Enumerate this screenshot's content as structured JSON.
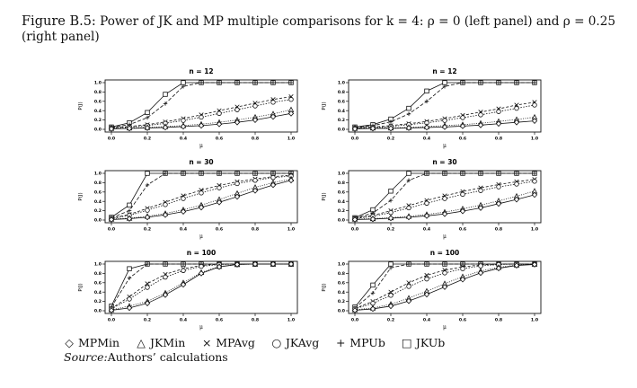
{
  "caption": {
    "label": "Figure B.5:",
    "text": "Power of JK and MP multiple comparisons for k = 4: ρ = 0 (left panel) and ρ = 0.25 (right panel)"
  },
  "legend": [
    {
      "symbol": "◇",
      "name": "MPMin",
      "marker": "diamond"
    },
    {
      "symbol": "△",
      "name": "JKMin",
      "marker": "triangle"
    },
    {
      "symbol": "×",
      "name": "MPAvg",
      "marker": "x"
    },
    {
      "symbol": "○",
      "name": "JKAvg",
      "marker": "circle"
    },
    {
      "symbol": "+",
      "name": "MPUb",
      "marker": "plus"
    },
    {
      "symbol": "□",
      "name": "JKUb",
      "marker": "square"
    }
  ],
  "source": {
    "label": "Source:",
    "text": "Authors’ calculations"
  },
  "chart_data": [
    {
      "type": "line",
      "title": "n = 12",
      "xlabel": "μ",
      "ylabel": "P(J)",
      "x": [
        0,
        0.1,
        0.2,
        0.3,
        0.4,
        0.5,
        0.6,
        0.7,
        0.8,
        0.9,
        1.0
      ],
      "xlim": [
        0,
        1
      ],
      "ylim": [
        0,
        1
      ],
      "xticks": [
        "0.0",
        "0.2",
        "0.4",
        "0.6",
        "0.8",
        "1.0"
      ],
      "yticks": [
        "0.0",
        "0.2",
        "0.4",
        "0.6",
        "0.8",
        "1.0"
      ],
      "series": [
        {
          "name": "JKUb",
          "values": [
            0.05,
            0.14,
            0.36,
            0.75,
            1.0,
            1.0,
            1.0,
            1.0,
            1.0,
            1.0,
            1.0
          ]
        },
        {
          "name": "MPUb",
          "values": [
            0.04,
            0.1,
            0.25,
            0.55,
            0.92,
            1.0,
            1.0,
            1.0,
            1.0,
            1.0,
            1.0
          ]
        },
        {
          "name": "MPAvg",
          "values": [
            0.03,
            0.06,
            0.1,
            0.16,
            0.23,
            0.31,
            0.4,
            0.48,
            0.56,
            0.64,
            0.7
          ]
        },
        {
          "name": "JKAvg",
          "values": [
            0.03,
            0.05,
            0.08,
            0.13,
            0.19,
            0.26,
            0.34,
            0.42,
            0.5,
            0.58,
            0.64
          ]
        },
        {
          "name": "JKMin",
          "values": [
            0.02,
            0.03,
            0.04,
            0.06,
            0.08,
            0.11,
            0.15,
            0.2,
            0.26,
            0.33,
            0.42
          ]
        },
        {
          "name": "MPMin",
          "values": [
            0.01,
            0.02,
            0.03,
            0.04,
            0.06,
            0.08,
            0.11,
            0.15,
            0.2,
            0.27,
            0.34
          ]
        }
      ]
    },
    {
      "type": "line",
      "title": "n = 12",
      "xlabel": "μ",
      "ylabel": "P(J)",
      "x": [
        0,
        0.1,
        0.2,
        0.3,
        0.4,
        0.5,
        0.6,
        0.7,
        0.8,
        0.9,
        1.0
      ],
      "xlim": [
        0,
        1
      ],
      "ylim": [
        0,
        1
      ],
      "xticks": [
        "0.0",
        "0.2",
        "0.4",
        "0.6",
        "0.8",
        "1.0"
      ],
      "yticks": [
        "0.0",
        "0.2",
        "0.4",
        "0.6",
        "0.8",
        "1.0"
      ],
      "series": [
        {
          "name": "JKUb",
          "values": [
            0.05,
            0.1,
            0.22,
            0.45,
            0.82,
            1.0,
            1.0,
            1.0,
            1.0,
            1.0,
            1.0
          ]
        },
        {
          "name": "MPUb",
          "values": [
            0.04,
            0.08,
            0.16,
            0.33,
            0.6,
            0.92,
            1.0,
            1.0,
            1.0,
            1.0,
            1.0
          ]
        },
        {
          "name": "MPAvg",
          "values": [
            0.03,
            0.05,
            0.08,
            0.12,
            0.17,
            0.23,
            0.3,
            0.37,
            0.44,
            0.52,
            0.58
          ]
        },
        {
          "name": "JKAvg",
          "values": [
            0.03,
            0.04,
            0.06,
            0.1,
            0.14,
            0.19,
            0.25,
            0.31,
            0.38,
            0.45,
            0.52
          ]
        },
        {
          "name": "JKMin",
          "values": [
            0.02,
            0.03,
            0.03,
            0.04,
            0.06,
            0.08,
            0.1,
            0.13,
            0.17,
            0.21,
            0.26
          ]
        },
        {
          "name": "MPMin",
          "values": [
            0.01,
            0.02,
            0.02,
            0.03,
            0.04,
            0.05,
            0.07,
            0.09,
            0.12,
            0.15,
            0.18
          ]
        }
      ]
    },
    {
      "type": "line",
      "title": "n = 30",
      "xlabel": "μ",
      "ylabel": "P(J)",
      "x": [
        0,
        0.1,
        0.2,
        0.3,
        0.4,
        0.5,
        0.6,
        0.7,
        0.8,
        0.9,
        1.0
      ],
      "xlim": [
        0,
        1
      ],
      "ylim": [
        0,
        1
      ],
      "xticks": [
        "0.0",
        "0.2",
        "0.4",
        "0.6",
        "0.8",
        "1.0"
      ],
      "yticks": [
        "0.0",
        "0.2",
        "0.4",
        "0.6",
        "0.8",
        "1.0"
      ],
      "series": [
        {
          "name": "JKUb",
          "values": [
            0.06,
            0.32,
            1.0,
            1.0,
            1.0,
            1.0,
            1.0,
            1.0,
            1.0,
            1.0,
            1.0
          ]
        },
        {
          "name": "MPUb",
          "values": [
            0.05,
            0.2,
            0.75,
            1.0,
            1.0,
            1.0,
            1.0,
            1.0,
            1.0,
            1.0,
            1.0
          ]
        },
        {
          "name": "MPAvg",
          "values": [
            0.04,
            0.12,
            0.25,
            0.38,
            0.52,
            0.64,
            0.74,
            0.82,
            0.88,
            0.93,
            0.96
          ]
        },
        {
          "name": "JKAvg",
          "values": [
            0.03,
            0.1,
            0.21,
            0.33,
            0.46,
            0.58,
            0.69,
            0.78,
            0.85,
            0.91,
            0.94
          ]
        },
        {
          "name": "JKMin",
          "values": [
            0.02,
            0.04,
            0.08,
            0.14,
            0.22,
            0.32,
            0.44,
            0.57,
            0.7,
            0.8,
            0.88
          ]
        },
        {
          "name": "MPMin",
          "values": [
            0.01,
            0.03,
            0.06,
            0.11,
            0.18,
            0.27,
            0.38,
            0.5,
            0.63,
            0.75,
            0.85
          ]
        }
      ]
    },
    {
      "type": "line",
      "title": "n = 30",
      "xlabel": "μ",
      "ylabel": "P(J)",
      "x": [
        0,
        0.1,
        0.2,
        0.3,
        0.4,
        0.5,
        0.6,
        0.7,
        0.8,
        0.9,
        1.0
      ],
      "xlim": [
        0,
        1
      ],
      "ylim": [
        0,
        1
      ],
      "xticks": [
        "0.0",
        "0.2",
        "0.4",
        "0.6",
        "0.8",
        "1.0"
      ],
      "yticks": [
        "0.0",
        "0.2",
        "0.4",
        "0.6",
        "0.8",
        "1.0"
      ],
      "series": [
        {
          "name": "JKUb",
          "values": [
            0.05,
            0.22,
            0.62,
            1.0,
            1.0,
            1.0,
            1.0,
            1.0,
            1.0,
            1.0,
            1.0
          ]
        },
        {
          "name": "MPUb",
          "values": [
            0.04,
            0.15,
            0.42,
            0.85,
            1.0,
            1.0,
            1.0,
            1.0,
            1.0,
            1.0,
            1.0
          ]
        },
        {
          "name": "MPAvg",
          "values": [
            0.04,
            0.1,
            0.2,
            0.31,
            0.42,
            0.52,
            0.61,
            0.69,
            0.76,
            0.82,
            0.87
          ]
        },
        {
          "name": "JKAvg",
          "values": [
            0.03,
            0.08,
            0.16,
            0.26,
            0.36,
            0.46,
            0.55,
            0.63,
            0.71,
            0.77,
            0.83
          ]
        },
        {
          "name": "JKMin",
          "values": [
            0.02,
            0.03,
            0.05,
            0.08,
            0.12,
            0.17,
            0.24,
            0.32,
            0.41,
            0.51,
            0.62
          ]
        },
        {
          "name": "MPMin",
          "values": [
            0.01,
            0.02,
            0.04,
            0.06,
            0.09,
            0.13,
            0.19,
            0.26,
            0.35,
            0.44,
            0.54
          ]
        }
      ]
    },
    {
      "type": "line",
      "title": "n = 100",
      "xlabel": "μ",
      "ylabel": "P(J)",
      "x": [
        0,
        0.1,
        0.2,
        0.3,
        0.4,
        0.5,
        0.6,
        0.7,
        0.8,
        0.9,
        1.0
      ],
      "xlim": [
        0,
        1
      ],
      "ylim": [
        0,
        1
      ],
      "xticks": [
        "0.0",
        "0.2",
        "0.4",
        "0.6",
        "0.8",
        "1.0"
      ],
      "yticks": [
        "0.0",
        "0.2",
        "0.4",
        "0.6",
        "0.8",
        "1.0"
      ],
      "series": [
        {
          "name": "JKUb",
          "values": [
            0.1,
            0.9,
            1.0,
            1.0,
            1.0,
            1.0,
            1.0,
            1.0,
            1.0,
            1.0,
            1.0
          ]
        },
        {
          "name": "MPUb",
          "values": [
            0.08,
            0.7,
            1.0,
            1.0,
            1.0,
            1.0,
            1.0,
            1.0,
            1.0,
            1.0,
            1.0
          ]
        },
        {
          "name": "MPAvg",
          "values": [
            0.05,
            0.3,
            0.58,
            0.78,
            0.9,
            0.97,
            1.0,
            1.0,
            1.0,
            1.0,
            1.0
          ]
        },
        {
          "name": "JKAvg",
          "values": [
            0.04,
            0.25,
            0.5,
            0.72,
            0.86,
            0.95,
            0.99,
            1.0,
            1.0,
            1.0,
            1.0
          ]
        },
        {
          "name": "JKMin",
          "values": [
            0.02,
            0.1,
            0.2,
            0.38,
            0.6,
            0.82,
            0.95,
            0.99,
            1.0,
            1.0,
            1.0
          ]
        },
        {
          "name": "MPMin",
          "values": [
            0.01,
            0.06,
            0.16,
            0.34,
            0.56,
            0.8,
            0.94,
            0.99,
            1.0,
            1.0,
            1.0
          ]
        }
      ]
    },
    {
      "type": "line",
      "title": "n = 100",
      "xlabel": "μ",
      "ylabel": "P(J)",
      "x": [
        0,
        0.1,
        0.2,
        0.3,
        0.4,
        0.5,
        0.6,
        0.7,
        0.8,
        0.9,
        1.0
      ],
      "xlim": [
        0,
        1
      ],
      "ylim": [
        0,
        1
      ],
      "xticks": [
        "0.0",
        "0.2",
        "0.4",
        "0.6",
        "0.8",
        "1.0"
      ],
      "yticks": [
        "0.0",
        "0.2",
        "0.4",
        "0.6",
        "0.8",
        "1.0"
      ],
      "series": [
        {
          "name": "JKUb",
          "values": [
            0.08,
            0.55,
            1.0,
            1.0,
            1.0,
            1.0,
            1.0,
            1.0,
            1.0,
            1.0,
            1.0
          ]
        },
        {
          "name": "MPUb",
          "values": [
            0.06,
            0.38,
            0.92,
            1.0,
            1.0,
            1.0,
            1.0,
            1.0,
            1.0,
            1.0,
            1.0
          ]
        },
        {
          "name": "MPAvg",
          "values": [
            0.05,
            0.2,
            0.4,
            0.6,
            0.76,
            0.87,
            0.94,
            0.98,
            1.0,
            1.0,
            1.0
          ]
        },
        {
          "name": "JKAvg",
          "values": [
            0.04,
            0.16,
            0.33,
            0.52,
            0.68,
            0.81,
            0.9,
            0.96,
            0.99,
            1.0,
            1.0
          ]
        },
        {
          "name": "JKMin",
          "values": [
            0.02,
            0.06,
            0.14,
            0.27,
            0.42,
            0.58,
            0.73,
            0.85,
            0.93,
            0.98,
            1.0
          ]
        },
        {
          "name": "MPMin",
          "values": [
            0.01,
            0.04,
            0.1,
            0.21,
            0.35,
            0.51,
            0.67,
            0.81,
            0.91,
            0.97,
            0.99
          ]
        }
      ]
    }
  ]
}
